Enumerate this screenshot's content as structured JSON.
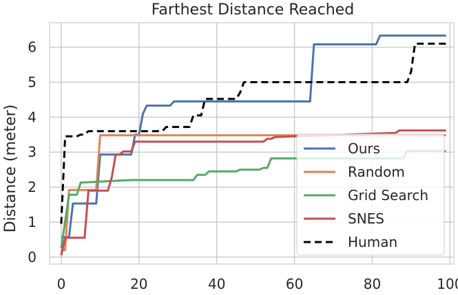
{
  "chart_data": {
    "type": "line",
    "title": "Farthest Distance Reached",
    "xlabel": "",
    "ylabel": "Distance (meter)",
    "xlim": [
      -3,
      101
    ],
    "ylim": [
      -0.2,
      6.7
    ],
    "xticks": [
      0,
      20,
      40,
      60,
      80,
      100
    ],
    "yticks": [
      0,
      1,
      2,
      3,
      4,
      5,
      6
    ],
    "grid": true,
    "legend_position": "lower-right",
    "series": [
      {
        "name": "Ours",
        "color": "#4c72b0",
        "dash": false,
        "x": [
          0,
          1,
          2,
          3,
          9,
          10,
          18,
          19,
          20,
          21,
          22,
          28,
          29,
          64,
          65,
          81,
          82,
          99
        ],
        "y": [
          0.57,
          0.57,
          0.57,
          1.53,
          1.53,
          2.93,
          2.93,
          3.5,
          3.5,
          4.1,
          4.33,
          4.33,
          4.45,
          4.45,
          6.08,
          6.08,
          6.33,
          6.33
        ]
      },
      {
        "name": "Random",
        "color": "#dd8452",
        "dash": false,
        "x": [
          0,
          1,
          2,
          3,
          9,
          10,
          99
        ],
        "y": [
          0.2,
          0.2,
          1.92,
          1.92,
          1.92,
          3.48,
          3.48
        ]
      },
      {
        "name": "Grid Search",
        "color": "#55a868",
        "dash": false,
        "x": [
          0,
          2,
          3,
          4,
          5,
          18,
          19,
          34,
          35,
          37,
          38,
          45,
          46,
          51,
          52,
          53,
          54,
          88,
          89,
          99
        ],
        "y": [
          0.25,
          1.78,
          1.78,
          1.78,
          2.13,
          2.2,
          2.2,
          2.2,
          2.35,
          2.35,
          2.45,
          2.45,
          2.5,
          2.5,
          2.55,
          2.55,
          2.82,
          2.82,
          3.03,
          3.03
        ]
      },
      {
        "name": "SNES",
        "color": "#c44e52",
        "dash": false,
        "x": [
          0,
          1,
          6,
          7,
          12,
          13,
          14,
          15,
          16,
          18,
          19,
          52,
          53,
          54,
          55,
          86,
          87,
          99
        ],
        "y": [
          0.05,
          0.55,
          0.55,
          1.9,
          1.9,
          2.28,
          2.93,
          2.93,
          3.02,
          3.02,
          3.3,
          3.3,
          3.38,
          3.38,
          3.43,
          3.55,
          3.62,
          3.62
        ]
      },
      {
        "name": "Human",
        "color": "#000000",
        "dash": true,
        "x": [
          0,
          1,
          4,
          5,
          6,
          7,
          26,
          27,
          33,
          34,
          36,
          37,
          45,
          46,
          47,
          89,
          90,
          91,
          99
        ],
        "y": [
          0.95,
          3.45,
          3.45,
          3.5,
          3.5,
          3.6,
          3.6,
          3.72,
          3.72,
          4.05,
          4.05,
          4.52,
          4.52,
          4.7,
          5.0,
          5.0,
          5.3,
          6.1,
          6.1
        ]
      }
    ]
  }
}
